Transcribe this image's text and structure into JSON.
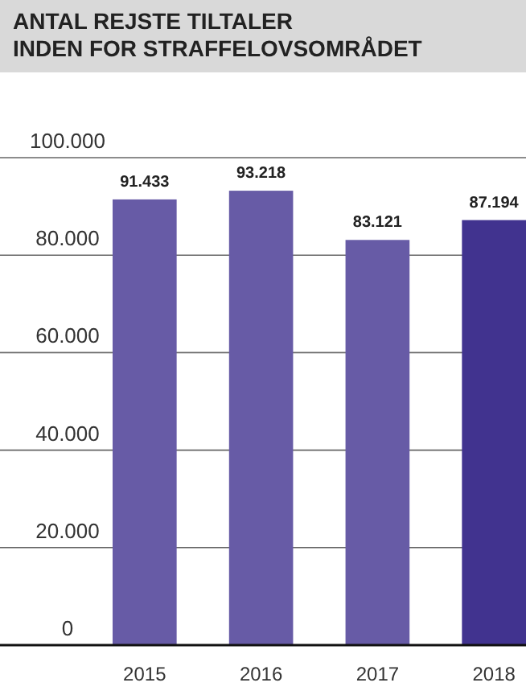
{
  "chart_data": {
    "type": "bar",
    "title": "ANTAL REJSTE TILTALER\nINDEN FOR STRAFFELOVSOMRÅDET",
    "categories": [
      "2015",
      "2016",
      "2017",
      "2018"
    ],
    "values": [
      91433,
      93218,
      83121,
      87194
    ],
    "colors": [
      "#675ba6",
      "#675ba6",
      "#675ba6",
      "#41338f"
    ],
    "value_labels": [
      "91.433",
      "93.218",
      "83.121",
      "87.194"
    ],
    "ylim": [
      0,
      100000
    ],
    "yticks": [
      {
        "value": 0,
        "label": "0"
      },
      {
        "value": 20000,
        "label": "20.000"
      },
      {
        "value": 40000,
        "label": "40.000"
      },
      {
        "value": 60000,
        "label": "60.000"
      },
      {
        "value": 80000,
        "label": "80.000"
      },
      {
        "value": 100000,
        "label": "100.000"
      }
    ],
    "grid": "y"
  }
}
